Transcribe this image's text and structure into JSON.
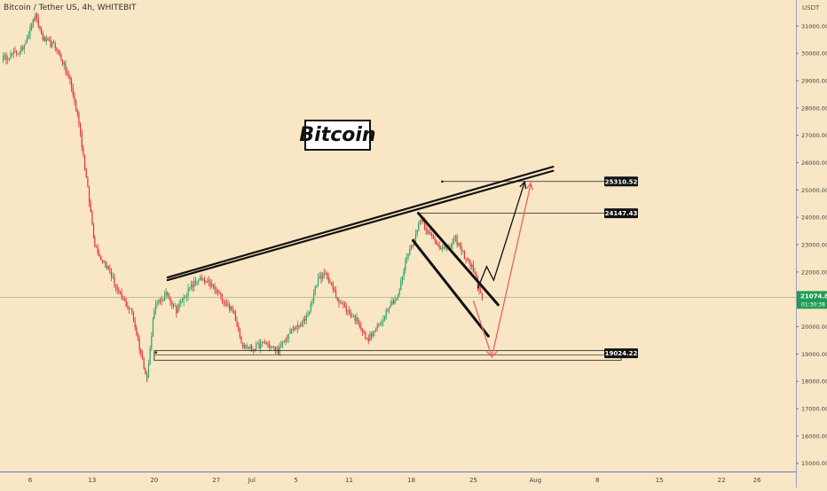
{
  "header": {
    "symbol_title": "Bitcoin / Tether US, 4h, WHITEBIT",
    "axis_unit": "USDT"
  },
  "annotation": {
    "title": "Bitcoin"
  },
  "colors": {
    "background": "#f8e6c4",
    "up": "#26a269",
    "down": "#e0302f",
    "last_price": "#1f9d55",
    "trend": "#111111",
    "bear_path": "#e46464",
    "crosshair": "#8fae7a"
  },
  "chart_data": {
    "type": "candlestick",
    "title": "Bitcoin / Tether US, 4h, WHITEBIT",
    "ylabel": "USDT",
    "ylim": [
      14700,
      31950
    ],
    "y_ticks": [
      15000,
      16000,
      17000,
      18000,
      19000,
      20000,
      21000,
      22000,
      23000,
      24000,
      25000,
      26000,
      27000,
      28000,
      29000,
      30000,
      31000
    ],
    "y_tick_labels": [
      "15000.00",
      "16000.00",
      "17000.00",
      "18000.00",
      "19000.00",
      "20000.00",
      "21000.00",
      "22000.00",
      "23000.00",
      "24000.00",
      "25000.00",
      "26000.00",
      "27000.00",
      "28000.00",
      "29000.00",
      "30000.00",
      "31000.00"
    ],
    "x_ticks": [
      {
        "label": "6",
        "day": 6
      },
      {
        "label": "13",
        "day": 13
      },
      {
        "label": "20",
        "day": 20
      },
      {
        "label": "27",
        "day": 27
      },
      {
        "label": "Jul",
        "day": 31
      },
      {
        "label": "5",
        "day": 36
      },
      {
        "label": "11",
        "day": 42
      },
      {
        "label": "18",
        "day": 49
      },
      {
        "label": "25",
        "day": 56
      },
      {
        "label": "Aug",
        "day": 63
      },
      {
        "label": "8",
        "day": 70
      },
      {
        "label": "15",
        "day": 77
      },
      {
        "label": "22",
        "day": 84
      },
      {
        "label": "26",
        "day": 88
      }
    ],
    "x_range_days": [
      2.6,
      92.4
    ],
    "last_price": {
      "value": 21074.89,
      "label": "21074.89",
      "countdown": "01:30:38"
    },
    "price_labels": [
      {
        "value": 25310.52,
        "label": "25310.52"
      },
      {
        "value": 24147.43,
        "label": "24147.43"
      },
      {
        "value": 19024.22,
        "label": "19024.22"
      }
    ],
    "candles_anchor_close": [
      [
        2.8,
        29800
      ],
      [
        5.0,
        30100
      ],
      [
        6.6,
        31350
      ],
      [
        7.5,
        30500
      ],
      [
        9.0,
        30200
      ],
      [
        10.5,
        29000
      ],
      [
        11.5,
        27500
      ],
      [
        12.5,
        25000
      ],
      [
        13.3,
        23000
      ],
      [
        14.0,
        22500
      ],
      [
        15.0,
        22000
      ],
      [
        16.0,
        21200
      ],
      [
        17.5,
        20500
      ],
      [
        18.5,
        19000
      ],
      [
        19.2,
        18100
      ],
      [
        20.0,
        20700
      ],
      [
        21.5,
        21200
      ],
      [
        22.5,
        20600
      ],
      [
        24.0,
        21400
      ],
      [
        25.0,
        21750
      ],
      [
        26.5,
        21500
      ],
      [
        28.0,
        20900
      ],
      [
        29.0,
        20500
      ],
      [
        30.0,
        19300
      ],
      [
        31.0,
        19200
      ],
      [
        32.5,
        19400
      ],
      [
        34.0,
        19100
      ],
      [
        35.5,
        19900
      ],
      [
        36.5,
        20000
      ],
      [
        37.5,
        20600
      ],
      [
        38.5,
        21800
      ],
      [
        39.5,
        21900
      ],
      [
        40.5,
        21100
      ],
      [
        42.0,
        20500
      ],
      [
        43.0,
        20200
      ],
      [
        44.0,
        19500
      ],
      [
        45.5,
        20100
      ],
      [
        46.5,
        20800
      ],
      [
        47.5,
        21100
      ],
      [
        48.5,
        22600
      ],
      [
        49.5,
        23300
      ],
      [
        50.0,
        24000
      ],
      [
        51.0,
        23400
      ],
      [
        52.0,
        23000
      ],
      [
        53.0,
        22800
      ],
      [
        54.0,
        23200
      ],
      [
        55.0,
        22600
      ],
      [
        56.0,
        22100
      ],
      [
        57.0,
        21000
      ]
    ],
    "trendlines": [
      {
        "name": "upper-trendline",
        "from": [
          21.5,
          21800
        ],
        "to": [
          65.0,
          25850
        ]
      },
      {
        "name": "upper-trendline-second",
        "from": [
          21.5,
          21700
        ],
        "to": [
          65.0,
          25700
        ]
      },
      {
        "name": "channel-upper",
        "from": [
          49.8,
          24150
        ],
        "to": [
          58.8,
          20800
        ]
      },
      {
        "name": "channel-lower",
        "from": [
          49.2,
          23150
        ],
        "to": [
          57.7,
          19650
        ]
      }
    ],
    "horizontal_levels": [
      {
        "name": "level-25310",
        "from_day": 52.5,
        "value": 25310.52
      },
      {
        "name": "level-24147",
        "from_day": 49.8,
        "value": 24147.43
      },
      {
        "name": "support-19024",
        "from_day": 20.0,
        "value": 19024.22
      }
    ],
    "projection_paths": [
      {
        "name": "bullish-projection",
        "points": [
          [
            56.5,
            21400
          ],
          [
            57.5,
            22200
          ],
          [
            58.3,
            21700
          ],
          [
            61.8,
            25300
          ]
        ]
      },
      {
        "name": "bearish-projection",
        "points": [
          [
            56.0,
            20950
          ],
          [
            58.1,
            18900
          ],
          [
            62.5,
            25250
          ]
        ]
      }
    ]
  }
}
